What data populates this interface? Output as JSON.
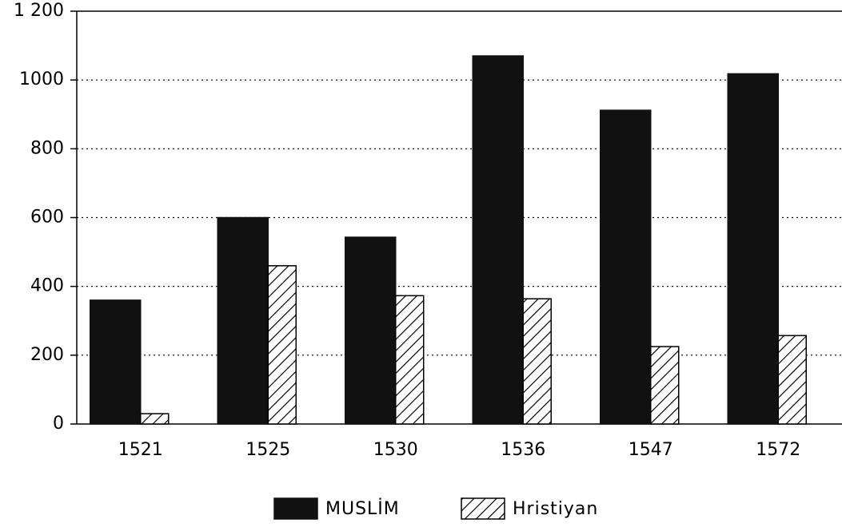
{
  "chart_data": {
    "type": "bar",
    "categories": [
      "1521",
      "1525",
      "1530",
      "1536",
      "1547",
      "1572"
    ],
    "series": [
      {
        "name": "MUSLİM",
        "color": "#111111",
        "values": [
          360,
          600,
          543,
          1070,
          912,
          1018
        ]
      },
      {
        "name": "Hristiyan",
        "color": "#000000",
        "hatch": true,
        "values": [
          30,
          460,
          373,
          364,
          225,
          257
        ]
      }
    ],
    "ylim": [
      0,
      1200
    ],
    "yticks": [
      0,
      200,
      400,
      600,
      800,
      1000,
      {
        "value": 1200,
        "label": "1 200"
      }
    ],
    "grid": true,
    "legend": "bottom"
  }
}
